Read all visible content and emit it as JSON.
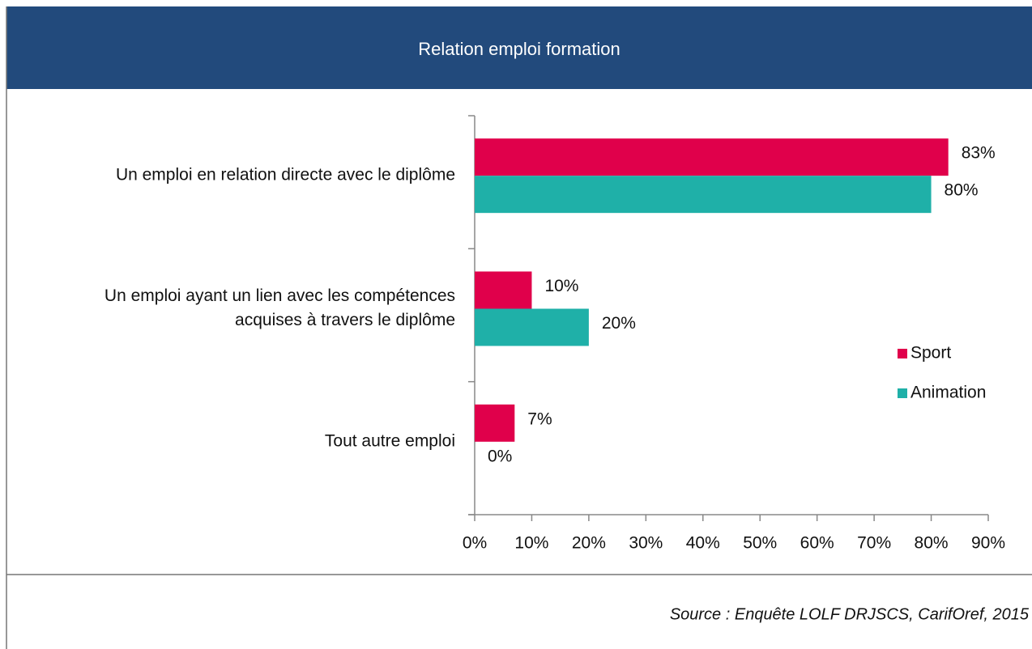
{
  "chart_data": {
    "type": "barh",
    "title": "Relation emploi formation",
    "categories": [
      [
        "Un emploi en relation directe avec le diplôme"
      ],
      [
        "Un emploi ayant un lien avec les compétences",
        "acquises à travers le diplôme"
      ],
      [
        "Tout autre emploi"
      ]
    ],
    "series": [
      {
        "name": "Sport",
        "color": "#e0004b",
        "values": [
          83,
          10,
          7
        ],
        "value_labels": [
          "83%",
          "10%",
          "7%"
        ]
      },
      {
        "name": "Animation",
        "color": "#1fb0a8",
        "values": [
          80,
          20,
          0
        ],
        "value_labels": [
          "80%",
          "20%",
          "0%"
        ]
      }
    ],
    "xlim": [
      0,
      90
    ],
    "xticks": [
      {
        "value": 0,
        "label": "0%"
      },
      {
        "value": 10,
        "label": "10%"
      },
      {
        "value": 20,
        "label": "20%"
      },
      {
        "value": 30,
        "label": "30%"
      },
      {
        "value": 40,
        "label": "40%"
      },
      {
        "value": 50,
        "label": "50%"
      },
      {
        "value": 60,
        "label": "60%"
      },
      {
        "value": 70,
        "label": "70%"
      },
      {
        "value": 80,
        "label": "80%"
      },
      {
        "value": 90,
        "label": "90%"
      }
    ],
    "legend": "right",
    "source": "Source : Enquête LOLF DRJSCS, CarifOref, 2015"
  }
}
